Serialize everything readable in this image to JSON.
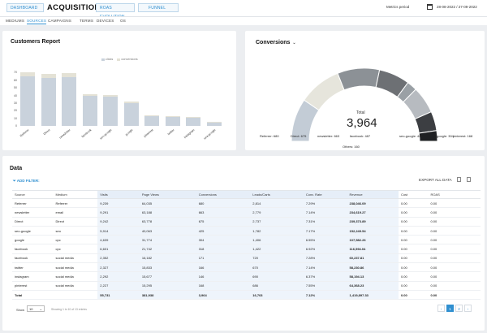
{
  "header": {
    "tabs": [
      "DASHBOARD",
      "ROAS EVOLUTION",
      "FUNNEL"
    ],
    "title": "ACQUISITION",
    "metrics_period_label": "Metrics period",
    "date_range": "28-08-2022 / 27-09-2022"
  },
  "subnav": [
    "MEDIUMS",
    "SOURCES",
    "CAMPAIGNS",
    "TERMS",
    "DEVICES",
    "OS"
  ],
  "customers_report": {
    "title": "Customers Report",
    "chart_data": {
      "type": "bar",
      "stacked": true,
      "categories": [
        "Referrer",
        "Direct",
        "newsletter",
        "facebook",
        "seo-google",
        "google",
        "pinterest",
        "twitter",
        "instagram",
        "sea-google"
      ],
      "series": [
        {
          "name": "clicks",
          "values": [
            65,
            63,
            64,
            39,
            38,
            30,
            13,
            12,
            11,
            4
          ],
          "color": "#c9d2dc"
        },
        {
          "name": "conversions",
          "values": [
            5,
            5,
            5,
            3,
            3,
            2,
            1,
            1,
            1,
            1
          ],
          "color": "#e4e2d6"
        }
      ],
      "yticks": [
        0,
        10,
        20,
        30,
        40,
        50,
        60,
        70
      ],
      "ylim": [
        0,
        80
      ],
      "legend_position": "top-right"
    }
  },
  "conversions": {
    "title": "Conversions",
    "total_label": "Total",
    "total_value": "3,964",
    "chart_data": {
      "type": "pie",
      "segments": [
        {
          "name": "Referrer",
          "value": 680,
          "color": "#c3ccd6"
        },
        {
          "name": "Direct",
          "value": 675,
          "color": "#e6e5dc"
        },
        {
          "name": "newsletter",
          "value": 663,
          "color": "#8c9196"
        },
        {
          "name": "facebook",
          "value": 487,
          "color": "#6d7074"
        },
        {
          "name": "Others",
          "value": 160,
          "color": "#9aa0a5"
        },
        {
          "name": "seo-google",
          "value": 425,
          "color": "#b7bbc0"
        },
        {
          "name": "google",
          "value": 304,
          "color": "#3c3e42"
        },
        {
          "name": "pinterest",
          "value": 168,
          "color": "#1f2023"
        }
      ]
    },
    "labels": [
      "Referrer: 680",
      "Direct: 675",
      "newsletter: 663",
      "facebook: 487",
      "Others: 160",
      "seo-google: 425",
      "google: 304",
      "pinterest: 168"
    ]
  },
  "data_card": {
    "title": "Data",
    "add_filter": "ADD FILTER:",
    "export": "EXPORT ALL DATA",
    "columns": [
      "Source",
      "Medium",
      "Visits",
      "Page Views",
      "Conversions",
      "Leads/Carts",
      "Conv. Rate",
      "Revenue",
      "Cost",
      "ROAS"
    ],
    "rows": [
      [
        "Referrer",
        "Referrer",
        "9,239",
        "64,035",
        "680",
        "2,814",
        "7.29%",
        "238,046.09",
        "0.00",
        "0.00"
      ],
      [
        "newsletter",
        "email",
        "9,291",
        "63,188",
        "663",
        "2,779",
        "7.14%",
        "234,619.27",
        "0.00",
        "0.00"
      ],
      [
        "Direct",
        "Direct",
        "9,242",
        "63,778",
        "675",
        "2,737",
        "7.31%",
        "239,373.89",
        "0.00",
        "0.00"
      ],
      [
        "seo-google",
        "seo",
        "5,914",
        "40,063",
        "425",
        "1,782",
        "7.17%",
        "152,249.54",
        "0.00",
        "0.00"
      ],
      [
        "google",
        "cpc",
        "4,639",
        "31,774",
        "304",
        "1,406",
        "6.55%",
        "107,582.26",
        "0.00",
        "0.00"
      ],
      [
        "facebook",
        "cpc",
        "6,601",
        "21,742",
        "318",
        "1,422",
        "6.92%",
        "116,594.04",
        "0.00",
        "0.00"
      ],
      [
        "facebook",
        "social media",
        "2,352",
        "16,182",
        "171",
        "720",
        "7.28%",
        "60,237.81",
        "0.00",
        "0.00"
      ],
      [
        "twitter",
        "social media",
        "2,327",
        "15,833",
        "166",
        "670",
        "7.14%",
        "58,230.86",
        "0.00",
        "0.00"
      ],
      [
        "instagram",
        "social media",
        "2,292",
        "15,677",
        "146",
        "690",
        "6.37%",
        "58,194.13",
        "0.00",
        "0.00"
      ],
      [
        "pinterest",
        "social media",
        "2,227",
        "15,295",
        "168",
        "686",
        "7.55%",
        "64,368.23",
        "0.00",
        "0.00"
      ]
    ],
    "total": [
      "Total",
      "",
      "55,731",
      "381,938",
      "3,964",
      "16,703",
      "7.12%",
      "1,419,897.33",
      "0.00",
      "0.00"
    ],
    "show_label": "Show",
    "page_size": "10",
    "showing": "Showing 1 to 10 of 13 entries",
    "pages": [
      "‹",
      "1",
      "2",
      "›"
    ]
  },
  "icons": {
    "calendar": "calendar-icon",
    "filter": "filter-icon",
    "export": "export-icon"
  }
}
